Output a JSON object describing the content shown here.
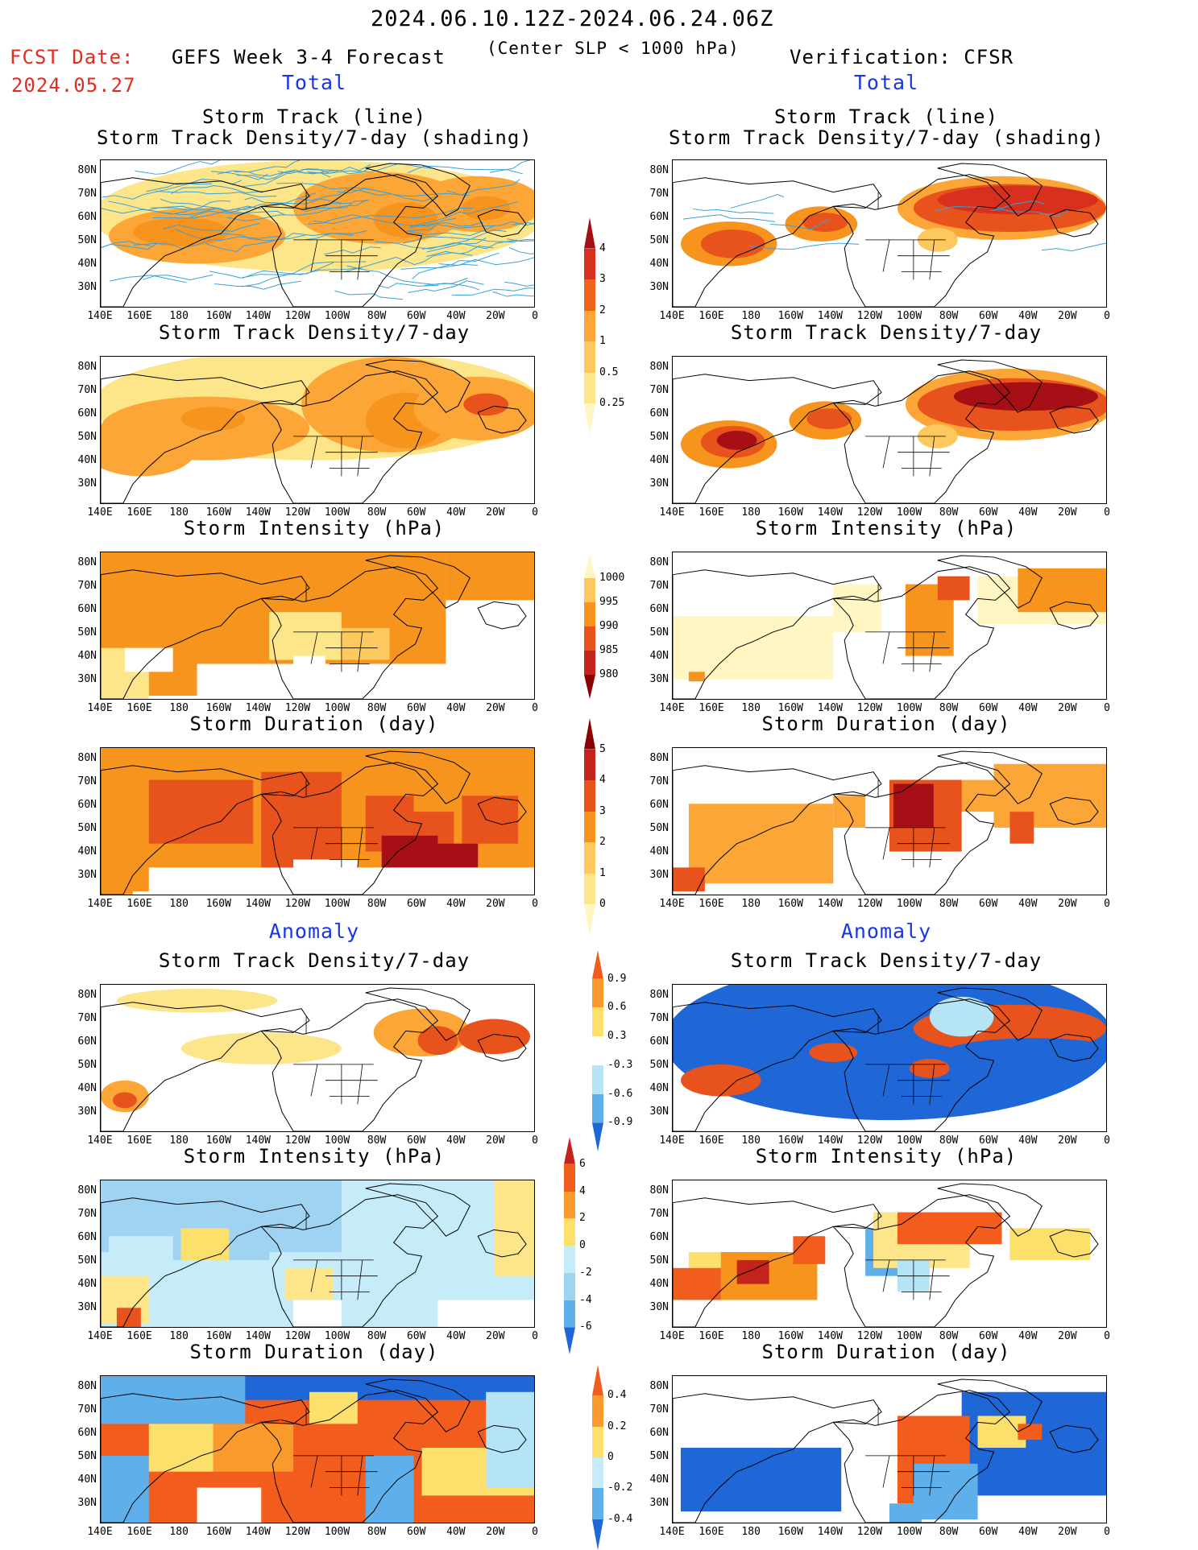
{
  "header": {
    "period": "2024.06.10.12Z-2024.06.24.06Z",
    "fcst_label": "FCST Date:",
    "fcst_date": "2024.05.27",
    "forecast_title": "GEFS Week 3-4 Forecast",
    "condition": "(Center SLP < 1000 hPa)",
    "verification": "Verification: CFSR"
  },
  "sections": {
    "total": "Total",
    "anomaly": "Anomaly"
  },
  "panel_titles": {
    "track_line_1": "Storm Track (line)",
    "track_line_2": "Storm Track Density/7-day (shading)",
    "density": "Storm Track Density/7-day",
    "intensity": "Storm Intensity (hPa)",
    "duration": "Storm Duration (day)"
  },
  "axes": {
    "y_ticks": [
      "80N",
      "70N",
      "60N",
      "50N",
      "40N",
      "30N"
    ],
    "x_ticks": [
      "140E",
      "160E",
      "180",
      "160W",
      "140W",
      "120W",
      "100W",
      "80W",
      "60W",
      "40W",
      "20W",
      "0"
    ]
  },
  "colorbars": {
    "density": {
      "labels": [
        "4",
        "3",
        "2",
        "1",
        "0.5",
        "0.25"
      ],
      "colors": [
        "#a50f15",
        "#d7301f",
        "#f0621a",
        "#fca637",
        "#fdc85e",
        "#fde68a",
        "#fff6c4"
      ]
    },
    "intensity": {
      "labels": [
        "1000",
        "995",
        "990",
        "985",
        "980"
      ],
      "colors": [
        "#fff6c4",
        "#fdc85e",
        "#f7941d",
        "#e8531d",
        "#c3231b",
        "#8b0000"
      ]
    },
    "duration": {
      "labels": [
        "5",
        "4",
        "3",
        "2",
        "1",
        "0"
      ],
      "colors": [
        "#8b0000",
        "#c3231b",
        "#e8531d",
        "#f7941d",
        "#fdc85e",
        "#fde68a",
        "#fff6c4"
      ]
    },
    "density_anom": {
      "labels": [
        "0.9",
        "0.6",
        "0.3",
        "-0.3",
        "-0.6",
        "-0.9"
      ],
      "colors": [
        "#f25d1e",
        "#fb9a2c",
        "#fde06b",
        "#ffffff",
        "#b6e4f7",
        "#5fb0ea",
        "#1f66d6"
      ]
    },
    "intensity_anom": {
      "labels": [
        "6",
        "4",
        "2",
        "0",
        "-2",
        "-4",
        "-6"
      ],
      "colors": [
        "#c3231b",
        "#f25d1e",
        "#fb9a2c",
        "#fde06b",
        "#c7ecf9",
        "#9fd3f2",
        "#5fb0ea",
        "#1f66d6"
      ]
    },
    "duration_anom": {
      "labels": [
        "0.4",
        "0.2",
        "0",
        "-0.2",
        "-0.4"
      ],
      "colors": [
        "#f25d1e",
        "#fb9a2c",
        "#fde06b",
        "#c7ecf9",
        "#5fb0ea",
        "#1f66d6"
      ]
    }
  }
}
